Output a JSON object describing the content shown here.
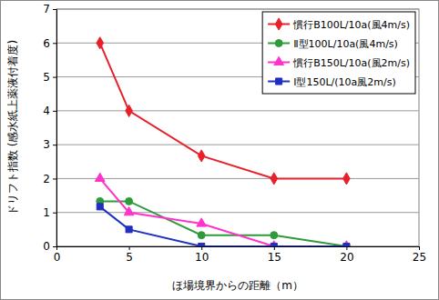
{
  "chart_data": {
    "type": "line",
    "x_label": "ほ場境界からの距離（m）",
    "y_label": "ドリフト指数 (感水紙上薬液付着度)",
    "x": [
      3,
      5,
      10,
      15,
      20
    ],
    "series": [
      {
        "name": "慣行B100L/10a(風4m/s)",
        "color": "#e8202a",
        "marker": "diamond",
        "values": [
          6,
          4,
          2.67,
          2,
          2
        ]
      },
      {
        "name": "Ⅱ型100L/10a(風4m/s)",
        "color": "#2e9a3a",
        "marker": "circle",
        "values": [
          1.33,
          1.33,
          0.33,
          0.33,
          0
        ]
      },
      {
        "name": "慣行B150L/10a(風2m/s)",
        "color": "#ff33cc",
        "marker": "triangle",
        "values": [
          2,
          1,
          0.67,
          0,
          0
        ]
      },
      {
        "name": "Ⅰ型150L/(10a風2m/s)",
        "color": "#1f2fbf",
        "marker": "square",
        "values": [
          1.17,
          0.5,
          0,
          0,
          0
        ]
      }
    ],
    "xlim": [
      0,
      25
    ],
    "xticks": [
      0,
      5,
      10,
      15,
      20,
      25
    ],
    "ylim": [
      0,
      7
    ],
    "yticks": [
      0,
      1,
      2,
      3,
      4,
      5,
      6,
      7
    ],
    "grid": true,
    "legend": "upper right"
  }
}
